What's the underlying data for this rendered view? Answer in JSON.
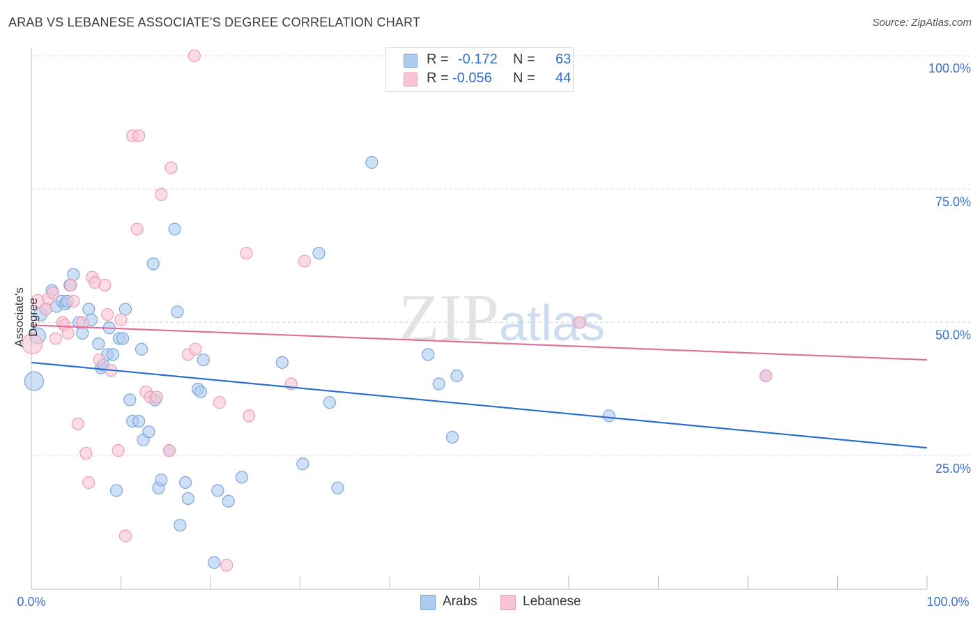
{
  "title": "ARAB VS LEBANESE ASSOCIATE'S DEGREE CORRELATION CHART",
  "source": "Source: ZipAtlas.com",
  "colors": {
    "arabs_fill": "#aecbf0",
    "arabs_stroke": "#7aa6df",
    "arabs_line": "#2b6fce",
    "lebanese_fill": "#f8c4d3",
    "lebanese_stroke": "#ee9db5",
    "lebanese_line": "#e0709a",
    "axis_text": "#3a70c8",
    "grid": "#d9d9d9"
  },
  "stats": {
    "arabs": {
      "r_label": "R =",
      "r": "-0.172",
      "n_label": "N =",
      "n": "63"
    },
    "lebanese": {
      "r_label": "R =",
      "r": "-0.056",
      "n_label": "N =",
      "n": "44"
    }
  },
  "legend": {
    "arabs": "Arabs",
    "lebanese": "Lebanese"
  },
  "chart_data": {
    "type": "scatter",
    "title": "ARAB VS LEBANESE ASSOCIATE'S DEGREE CORRELATION CHART",
    "ylabel": "Associate's Degree",
    "xlim": [
      0,
      100
    ],
    "ylim": [
      0,
      100
    ],
    "x_tick_labels": [
      "0.0%",
      "100.0%"
    ],
    "y_tick_labels": [
      "100.0%",
      "75.0%",
      "50.0%",
      "25.0%"
    ],
    "y_ticks": [
      100,
      75,
      50,
      25
    ],
    "grid": true,
    "legend_position": "bottom",
    "watermark": "ZIPatlas",
    "series": [
      {
        "name": "Arabs",
        "trend": [
          [
            0,
            42.5
          ],
          [
            100,
            26.5
          ]
        ],
        "points": [
          [
            0.3,
            39,
            12
          ],
          [
            0.7,
            47.5,
            10
          ],
          [
            1.0,
            51.5,
            8
          ],
          [
            1.6,
            52.5,
            7
          ],
          [
            2.3,
            56,
            7
          ],
          [
            2.8,
            53,
            7
          ],
          [
            3.4,
            54,
            7
          ],
          [
            3.8,
            53.5,
            7
          ],
          [
            4.0,
            54,
            7
          ],
          [
            4.3,
            57,
            7
          ],
          [
            4.7,
            59,
            7
          ],
          [
            5.3,
            50,
            7
          ],
          [
            5.7,
            48,
            7
          ],
          [
            6.4,
            52.5,
            7
          ],
          [
            6.7,
            50.5,
            7
          ],
          [
            7.5,
            46,
            7
          ],
          [
            7.8,
            41.5,
            7
          ],
          [
            8.0,
            42,
            7
          ],
          [
            8.5,
            44,
            7
          ],
          [
            8.7,
            49,
            7
          ],
          [
            9.1,
            44,
            7
          ],
          [
            9.5,
            18.5,
            7
          ],
          [
            9.8,
            47,
            7
          ],
          [
            10.2,
            47,
            7
          ],
          [
            10.5,
            52.5,
            7
          ],
          [
            11.0,
            35.5,
            7
          ],
          [
            11.3,
            31.5,
            7
          ],
          [
            12.0,
            31.5,
            7
          ],
          [
            12.3,
            45,
            7
          ],
          [
            12.5,
            28,
            7
          ],
          [
            13.1,
            29.5,
            7
          ],
          [
            13.6,
            61,
            7
          ],
          [
            13.8,
            35.5,
            7
          ],
          [
            14.2,
            19,
            7
          ],
          [
            14.5,
            20.5,
            7
          ],
          [
            15.4,
            26,
            7
          ],
          [
            16.0,
            67.5,
            7
          ],
          [
            16.3,
            52,
            7
          ],
          [
            16.6,
            12,
            7
          ],
          [
            17.2,
            20,
            7
          ],
          [
            17.5,
            17,
            7
          ],
          [
            18.6,
            37.5,
            7
          ],
          [
            18.9,
            37,
            7
          ],
          [
            19.2,
            43,
            7
          ],
          [
            20.4,
            5,
            7
          ],
          [
            20.8,
            18.5,
            7
          ],
          [
            22.0,
            16.5,
            7
          ],
          [
            23.5,
            21,
            7
          ],
          [
            28.0,
            42.5,
            7
          ],
          [
            30.3,
            23.5,
            7
          ],
          [
            32.1,
            63,
            7
          ],
          [
            33.3,
            35,
            7
          ],
          [
            34.2,
            19,
            7
          ],
          [
            38.0,
            80,
            7
          ],
          [
            44.3,
            44,
            7
          ],
          [
            45.5,
            38.5,
            7
          ],
          [
            47.0,
            28.5,
            7
          ],
          [
            47.5,
            40,
            7
          ],
          [
            61.2,
            50,
            7
          ],
          [
            64.5,
            32.5,
            7
          ],
          [
            82.0,
            40,
            7
          ],
          [
            14.7,
            8,
            0
          ],
          [
            15.5,
            6,
            0
          ]
        ]
      },
      {
        "name": "Lebanese",
        "trend": [
          [
            0,
            49.5
          ],
          [
            100,
            43
          ]
        ],
        "points": [
          [
            0.1,
            46,
            13
          ],
          [
            0.7,
            54,
            8
          ],
          [
            1.6,
            52.5,
            7
          ],
          [
            1.9,
            54.5,
            7
          ],
          [
            2.4,
            55.5,
            7
          ],
          [
            2.7,
            47,
            7
          ],
          [
            3.5,
            50,
            7
          ],
          [
            3.7,
            49.5,
            7
          ],
          [
            4.1,
            48,
            7
          ],
          [
            4.4,
            57,
            7
          ],
          [
            4.7,
            54,
            7
          ],
          [
            5.2,
            31,
            7
          ],
          [
            5.7,
            50,
            7
          ],
          [
            6.1,
            25.5,
            7
          ],
          [
            6.4,
            20,
            7
          ],
          [
            6.8,
            58.5,
            7
          ],
          [
            7.1,
            57.5,
            7
          ],
          [
            7.6,
            43,
            7
          ],
          [
            8.2,
            57,
            7
          ],
          [
            8.5,
            51.5,
            7
          ],
          [
            8.9,
            41,
            7
          ],
          [
            9.7,
            26,
            7
          ],
          [
            10.0,
            50.5,
            7
          ],
          [
            10.5,
            10,
            7
          ],
          [
            11.3,
            85,
            7
          ],
          [
            12.0,
            85,
            7
          ],
          [
            11.8,
            67.5,
            7
          ],
          [
            12.8,
            37,
            7
          ],
          [
            13.3,
            36,
            7
          ],
          [
            14.0,
            36,
            7
          ],
          [
            14.5,
            74,
            7
          ],
          [
            15.6,
            79,
            7
          ],
          [
            15.4,
            26,
            7
          ],
          [
            17.5,
            44,
            7
          ],
          [
            18.3,
            45,
            7
          ],
          [
            18.2,
            100,
            7
          ],
          [
            21.0,
            35,
            7
          ],
          [
            21.8,
            4.5,
            7
          ],
          [
            24.0,
            63,
            7
          ],
          [
            24.3,
            32.5,
            7
          ],
          [
            29.0,
            38.5,
            7
          ],
          [
            30.5,
            61.5,
            7
          ],
          [
            61.2,
            50,
            7
          ],
          [
            82.0,
            40,
            7
          ]
        ]
      }
    ]
  }
}
